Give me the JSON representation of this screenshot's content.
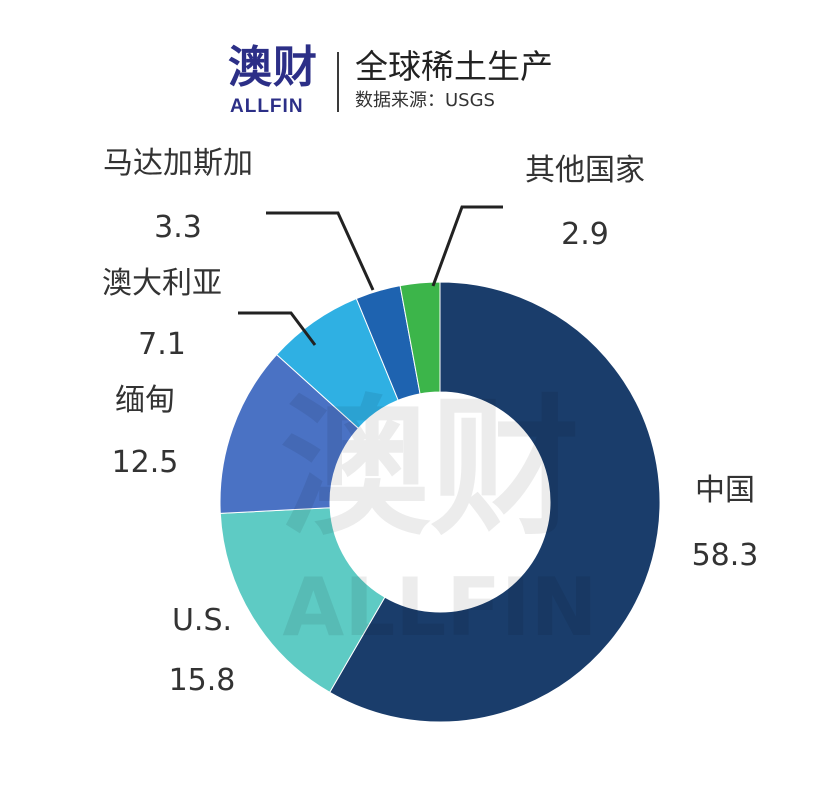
{
  "logo": {
    "cn": "澳财",
    "en": "ALLFIN"
  },
  "header": {
    "title": "全球稀土生产",
    "subtitle": "数据来源：USGS"
  },
  "chart_data": {
    "type": "pie",
    "donut": true,
    "title": "全球稀土生产",
    "source": "数据来源：USGS",
    "slices": [
      {
        "label": "中国",
        "value": 58.3,
        "value_label": "58.3",
        "color": "#1a3d6b"
      },
      {
        "label": "U.S.",
        "value": 15.8,
        "value_label": "15.8",
        "color": "#5ecbc4"
      },
      {
        "label": "缅甸",
        "value": 12.5,
        "value_label": "12.5",
        "color": "#4a72c4"
      },
      {
        "label": "澳大利亚",
        "value": 7.1,
        "value_label": "7.1",
        "color": "#2fb0e3"
      },
      {
        "label": "马达加斯加",
        "value": 3.3,
        "value_label": "3.3",
        "color": "#1e63b0"
      },
      {
        "label": "其他国家",
        "value": 2.9,
        "value_label": "2.9",
        "color": "#3cb54a"
      }
    ]
  }
}
